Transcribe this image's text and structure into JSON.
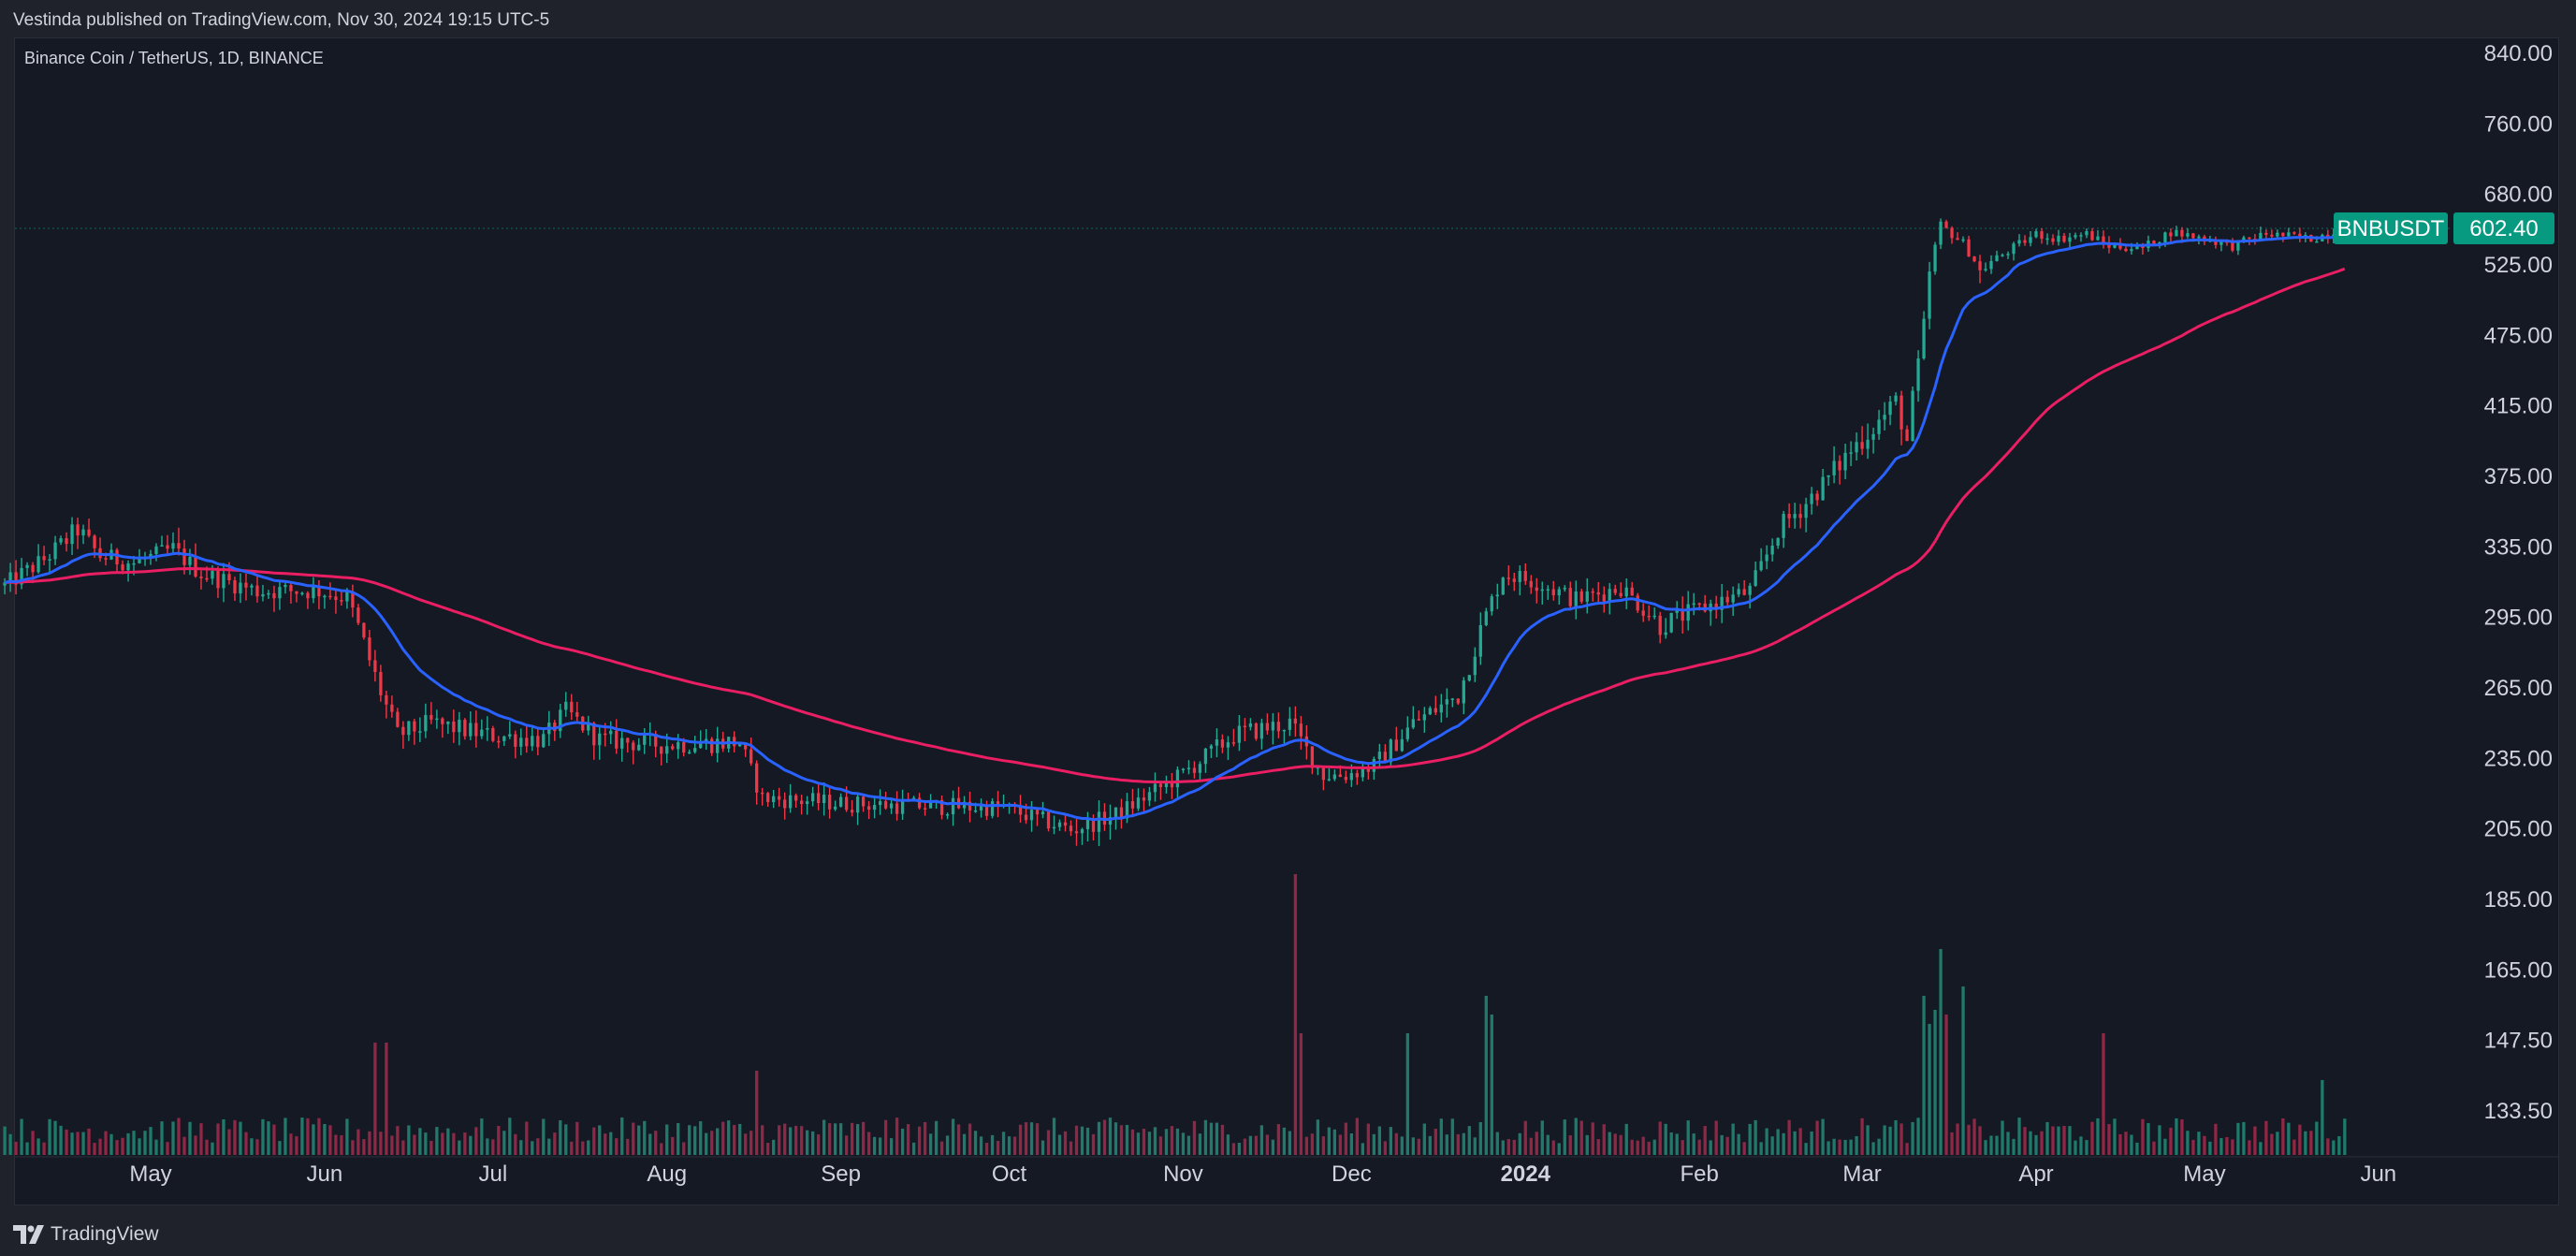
{
  "header": {
    "publish_text": "Vestinda published on TradingView.com, Nov 30, 2024 19:15 UTC-5"
  },
  "symbol_title": "Binance Coin / TetherUS, 1D, BINANCE",
  "footer": {
    "brand": "TradingView",
    "logo_icon": "tradingview-logo-icon"
  },
  "colors": {
    "background": "#151924",
    "up": "#22ab94",
    "down": "#f23645",
    "volume_up": "#1f7a6b",
    "volume_down": "#8f2745",
    "ema_fast": "#2962ff",
    "ema_slow": "#e91e63",
    "price_label": "#089981",
    "text": "#d1d4dc"
  },
  "chart_data": {
    "type": "candlestick",
    "symbol": "BNBUSDT",
    "last_price": "602.40",
    "price_axis": {
      "scale": "log",
      "ticks": [
        "840.00",
        "760.00",
        "680.00",
        "602.40",
        "525.00",
        "475.00",
        "415.00",
        "375.00",
        "335.00",
        "295.00",
        "265.00",
        "235.00",
        "205.00",
        "185.00",
        "165.00",
        "147.50",
        "133.50"
      ]
    },
    "time_axis": {
      "ticks": [
        {
          "label": "May",
          "date": "2023-05-01",
          "bold": false
        },
        {
          "label": "Jun",
          "date": "2023-06-01",
          "bold": false
        },
        {
          "label": "Jul",
          "date": "2023-07-01",
          "bold": false
        },
        {
          "label": "Aug",
          "date": "2023-08-01",
          "bold": false
        },
        {
          "label": "Sep",
          "date": "2023-09-01",
          "bold": false
        },
        {
          "label": "Oct",
          "date": "2023-10-01",
          "bold": false
        },
        {
          "label": "Nov",
          "date": "2023-11-01",
          "bold": false
        },
        {
          "label": "Dec",
          "date": "2023-12-01",
          "bold": false
        },
        {
          "label": "2024",
          "date": "2024-01-01",
          "bold": true
        },
        {
          "label": "Feb",
          "date": "2024-02-01",
          "bold": false
        },
        {
          "label": "Mar",
          "date": "2024-03-01",
          "bold": false
        },
        {
          "label": "Apr",
          "date": "2024-04-01",
          "bold": false
        },
        {
          "label": "May",
          "date": "2024-05-01",
          "bold": false
        },
        {
          "label": "Jun",
          "date": "2024-06-01",
          "bold": false
        }
      ]
    },
    "start_date": "2023-04-05",
    "end_date": "2024-05-26",
    "price_anchors": [
      [
        "2023-04-05",
        313
      ],
      [
        "2023-04-12",
        328
      ],
      [
        "2023-04-18",
        345
      ],
      [
        "2023-04-22",
        330
      ],
      [
        "2023-04-28",
        326
      ],
      [
        "2023-05-05",
        334
      ],
      [
        "2023-05-10",
        320
      ],
      [
        "2023-05-20",
        310
      ],
      [
        "2023-05-31",
        310
      ],
      [
        "2023-06-05",
        306
      ],
      [
        "2023-06-10",
        270
      ],
      [
        "2023-06-14",
        245
      ],
      [
        "2023-06-20",
        250
      ],
      [
        "2023-06-30",
        245
      ],
      [
        "2023-07-10",
        243
      ],
      [
        "2023-07-14",
        255
      ],
      [
        "2023-07-20",
        243
      ],
      [
        "2023-07-31",
        241
      ],
      [
        "2023-08-14",
        242
      ],
      [
        "2023-08-18",
        218
      ],
      [
        "2023-08-31",
        216
      ],
      [
        "2023-09-10",
        215
      ],
      [
        "2023-09-30",
        214
      ],
      [
        "2023-10-12",
        205
      ],
      [
        "2023-10-20",
        211
      ],
      [
        "2023-10-31",
        227
      ],
      [
        "2023-11-10",
        245
      ],
      [
        "2023-11-20",
        250
      ],
      [
        "2023-11-26",
        228
      ],
      [
        "2023-11-30",
        228
      ],
      [
        "2023-12-05",
        232
      ],
      [
        "2023-12-12",
        250
      ],
      [
        "2023-12-20",
        262
      ],
      [
        "2023-12-28",
        320
      ],
      [
        "2024-01-03",
        315
      ],
      [
        "2024-01-10",
        305
      ],
      [
        "2024-01-18",
        312
      ],
      [
        "2024-01-25",
        292
      ],
      [
        "2024-02-01",
        300
      ],
      [
        "2024-02-10",
        310
      ],
      [
        "2024-02-15",
        345
      ],
      [
        "2024-02-20",
        360
      ],
      [
        "2024-02-28",
        390
      ],
      [
        "2024-03-05",
        410
      ],
      [
        "2024-03-07",
        420
      ],
      [
        "2024-03-09",
        395
      ],
      [
        "2024-03-12",
        480
      ],
      [
        "2024-03-15",
        610
      ],
      [
        "2024-03-19",
        570
      ],
      [
        "2024-03-22",
        520
      ],
      [
        "2024-04-01",
        590
      ],
      [
        "2024-04-05",
        580
      ],
      [
        "2024-04-10",
        590
      ],
      [
        "2024-04-14",
        565
      ],
      [
        "2024-04-20",
        560
      ],
      [
        "2024-04-25",
        595
      ],
      [
        "2024-05-01",
        580
      ],
      [
        "2024-05-06",
        565
      ],
      [
        "2024-05-12",
        590
      ],
      [
        "2024-05-20",
        580
      ],
      [
        "2024-05-26",
        602.4
      ]
    ],
    "volume_spikes": [
      [
        "2023-06-10",
        2.4
      ],
      [
        "2023-06-12",
        2.4
      ],
      [
        "2023-08-17",
        1.8
      ],
      [
        "2023-11-21",
        6.0
      ],
      [
        "2023-11-22",
        2.6
      ],
      [
        "2023-12-11",
        2.6
      ],
      [
        "2023-12-25",
        3.4
      ],
      [
        "2023-12-26",
        3.0
      ],
      [
        "2024-03-12",
        3.4
      ],
      [
        "2024-03-13",
        2.8
      ],
      [
        "2024-03-14",
        3.1
      ],
      [
        "2024-03-15",
        4.4
      ],
      [
        "2024-03-16",
        3.0
      ],
      [
        "2024-03-19",
        3.6
      ],
      [
        "2024-04-13",
        2.6
      ],
      [
        "2024-05-22",
        1.6
      ]
    ],
    "moving_averages": [
      {
        "period": "fast",
        "color": "#2962ff"
      },
      {
        "period": "slow",
        "color": "#e91e63"
      }
    ]
  }
}
